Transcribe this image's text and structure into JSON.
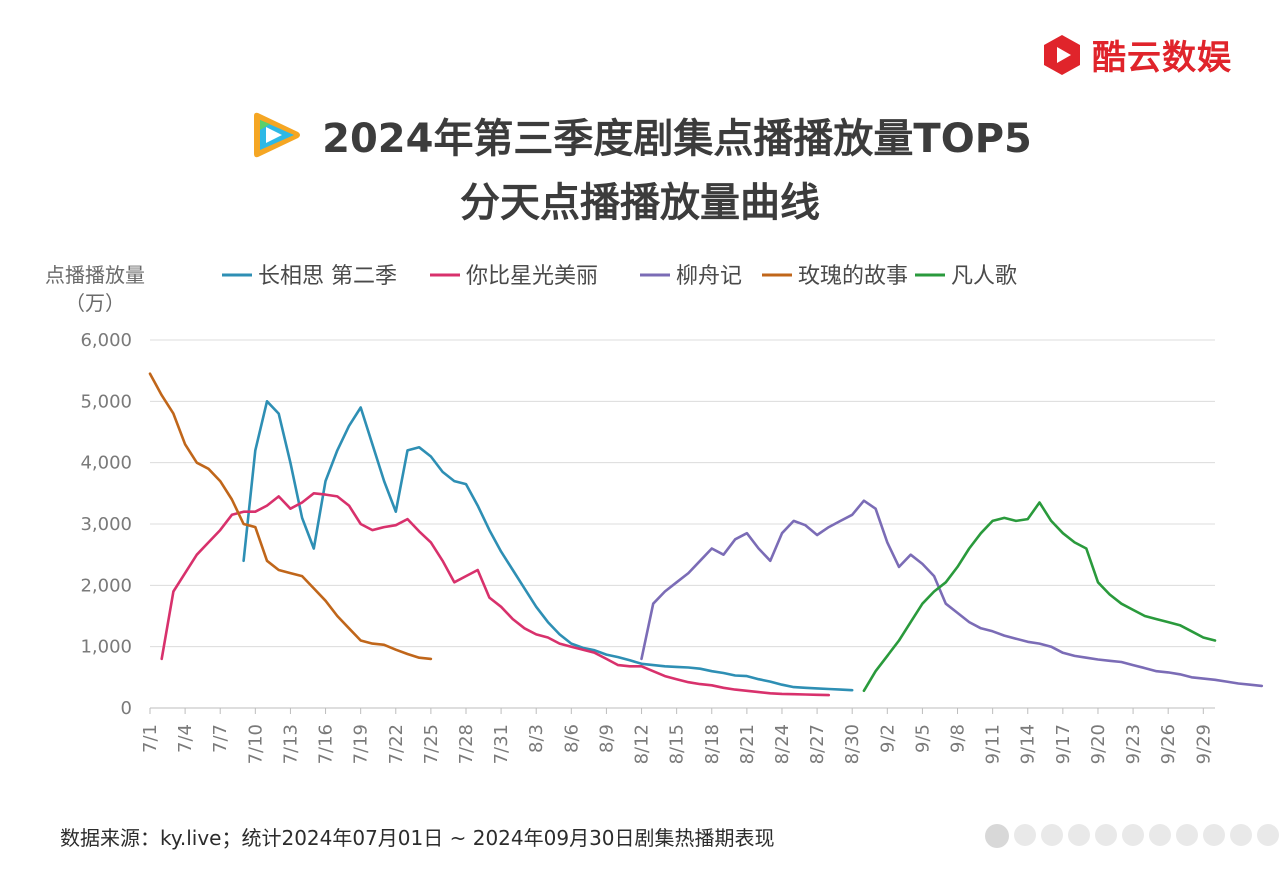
{
  "brand": {
    "name": "酷云数娱",
    "color": "#e0242b"
  },
  "title": {
    "line1": "2024年第三季度剧集点播播放量TOP5",
    "line2": "分天点播播放量曲线"
  },
  "footnote": "数据来源：ky.live；统计2024年07月01日 ~ 2024年09月30日剧集热播期表现",
  "chart_data": {
    "type": "line",
    "ylabel": [
      "点播播放量",
      "（万）"
    ],
    "xlabel": "",
    "ylim": [
      0,
      6000
    ],
    "yticks": [
      0,
      1000,
      2000,
      3000,
      4000,
      5000,
      6000
    ],
    "ytick_labels": [
      "0",
      "1,000",
      "2,000",
      "3,000",
      "4,000",
      "5,000",
      "6,000"
    ],
    "grid": "horizontal",
    "legend": "top",
    "x_tick_labels": [
      "7/1",
      "7/4",
      "7/7",
      "7/10",
      "7/13",
      "7/16",
      "7/19",
      "7/22",
      "7/25",
      "7/28",
      "7/31",
      "8/3",
      "8/6",
      "8/9",
      "8/12",
      "8/15",
      "8/18",
      "8/21",
      "8/24",
      "8/27",
      "8/30",
      "9/2",
      "9/5",
      "9/8",
      "9/11",
      "9/14",
      "9/17",
      "9/20",
      "9/23",
      "9/26",
      "9/29"
    ],
    "x_tick_step_days": 3,
    "x_days": 92,
    "series": [
      {
        "name": "长相思 第二季",
        "color": "#2e8fb4",
        "start_day": 8,
        "values": [
          2400,
          4200,
          5000,
          4800,
          4000,
          3100,
          2600,
          3700,
          4200,
          4600,
          4900,
          4300,
          3700,
          3200,
          4200,
          4250,
          4100,
          3850,
          3700,
          3650,
          3300,
          2900,
          2550,
          2250,
          1950,
          1650,
          1400,
          1200,
          1050,
          980,
          940,
          870,
          830,
          780,
          720,
          700,
          680,
          670,
          660,
          640,
          600,
          570,
          530,
          520,
          470,
          430,
          380,
          340,
          330,
          320,
          310,
          300,
          290
        ]
      },
      {
        "name": "你比星光美丽",
        "color": "#d8316c",
        "start_day": 1,
        "values": [
          800,
          1900,
          2200,
          2500,
          2700,
          2900,
          3150,
          3200,
          3200,
          3300,
          3450,
          3250,
          3350,
          3500,
          3480,
          3450,
          3300,
          3000,
          2900,
          2950,
          2980,
          3080,
          2880,
          2700,
          2400,
          2050,
          2150,
          2250,
          1800,
          1650,
          1450,
          1300,
          1200,
          1150,
          1050,
          1000,
          950,
          900,
          800,
          700,
          680,
          680,
          600,
          520,
          470,
          420,
          390,
          370,
          330,
          300,
          280,
          260,
          240,
          230,
          225,
          220,
          215,
          210
        ]
      },
      {
        "name": "柳舟记",
        "color": "#7b6cb6",
        "start_day": 42,
        "values": [
          800,
          1700,
          1900,
          2050,
          2200,
          2400,
          2600,
          2500,
          2750,
          2850,
          2600,
          2400,
          2850,
          3050,
          2980,
          2820,
          2950,
          3050,
          3150,
          3380,
          3250,
          2700,
          2300,
          2500,
          2350,
          2150,
          1700,
          1550,
          1400,
          1300,
          1250,
          1180,
          1130,
          1080,
          1050,
          1000,
          900,
          850,
          820,
          790,
          770,
          750,
          700,
          650,
          600,
          580,
          550,
          500,
          480,
          460,
          430,
          400,
          380,
          360
        ]
      },
      {
        "name": "玫瑰的故事",
        "color": "#c0661a",
        "start_day": 0,
        "values": [
          5450,
          5100,
          4800,
          4300,
          4000,
          3900,
          3700,
          3400,
          3000,
          2950,
          2400,
          2250,
          2200,
          2150,
          1950,
          1750,
          1500,
          1300,
          1100,
          1050,
          1030,
          950,
          880,
          820,
          800
        ]
      },
      {
        "name": "凡人歌",
        "color": "#2a9a3c",
        "start_day": 61,
        "values": [
          280,
          600,
          850,
          1100,
          1400,
          1700,
          1900,
          2050,
          2300,
          2600,
          2850,
          3050,
          3100,
          3050,
          3080,
          3350,
          3050,
          2850,
          2700,
          2600,
          2050,
          1850,
          1700,
          1600,
          1500,
          1450,
          1400,
          1350,
          1250,
          1150,
          1100
        ]
      }
    ]
  }
}
